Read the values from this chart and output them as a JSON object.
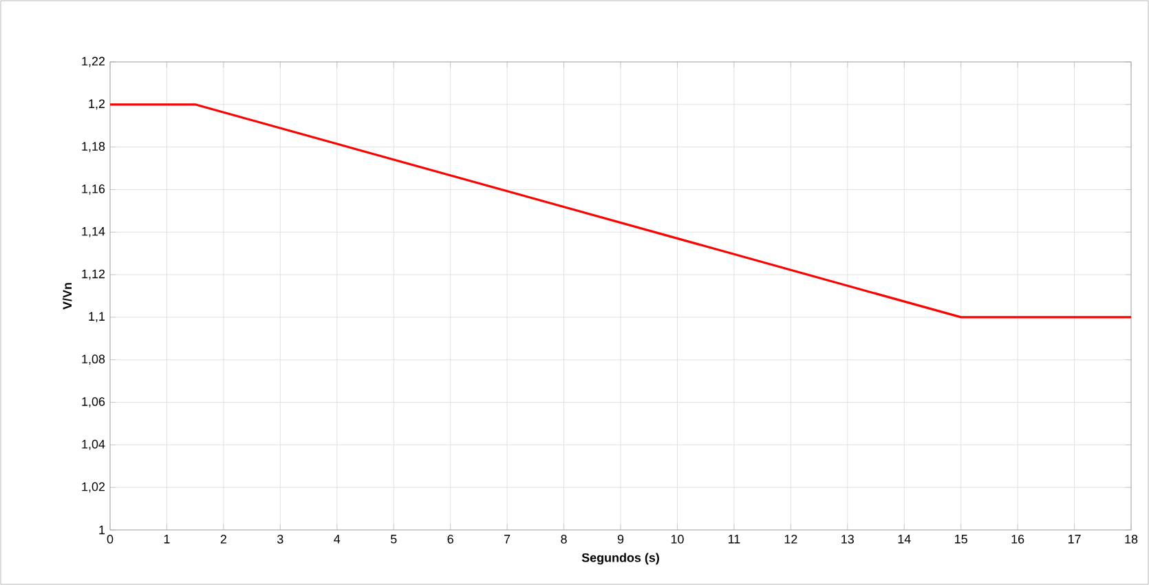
{
  "chart_data": {
    "type": "line",
    "xlabel": "Segundos (s)",
    "ylabel": "V/Vn",
    "series": [
      {
        "color": "#ff0000",
        "x": [
          0,
          1.5,
          15,
          18
        ],
        "values": [
          1.2,
          1.2,
          1.1,
          1.1
        ]
      }
    ],
    "xlim": [
      0,
      18
    ],
    "xticks": [
      0,
      1,
      2,
      3,
      4,
      5,
      6,
      7,
      8,
      9,
      10,
      11,
      12,
      13,
      14,
      15,
      16,
      17,
      18
    ],
    "ylim": [
      1,
      1.22
    ],
    "yticks": [
      1,
      {
        "value": 1.02,
        "label": "1,02"
      },
      {
        "value": 1.04,
        "label": "1,04"
      },
      {
        "value": 1.06,
        "label": "1,06"
      },
      {
        "value": 1.08,
        "label": "1,08"
      },
      {
        "value": 1.1,
        "label": "1,1"
      },
      {
        "value": 1.12,
        "label": "1,12"
      },
      {
        "value": 1.14,
        "label": "1,14"
      },
      {
        "value": 1.16,
        "label": "1,16"
      },
      {
        "value": 1.18,
        "label": "1,18"
      },
      {
        "value": 1.2,
        "label": "1,2"
      },
      {
        "value": 1.22,
        "label": "1,22"
      }
    ],
    "grid": true,
    "marker": "none",
    "line_style": "solid"
  }
}
